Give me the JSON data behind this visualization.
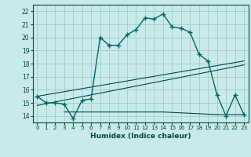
{
  "xlabel": "Humidex (Indice chaleur)",
  "bg_color": "#c8eaea",
  "grid_color": "#a8d0d0",
  "line_color": "#006868",
  "line2_color": "#004848",
  "xlim": [
    -0.5,
    23.5
  ],
  "ylim": [
    13.5,
    22.5
  ],
  "xticks": [
    0,
    1,
    2,
    3,
    4,
    5,
    6,
    7,
    8,
    9,
    10,
    11,
    12,
    13,
    14,
    15,
    16,
    17,
    18,
    19,
    20,
    21,
    22,
    23
  ],
  "yticks": [
    14,
    15,
    16,
    17,
    18,
    19,
    20,
    21,
    22
  ],
  "main_x": [
    0,
    1,
    2,
    3,
    4,
    5,
    6,
    7,
    8,
    9,
    10,
    11,
    12,
    13,
    14,
    15,
    16,
    17,
    18,
    19,
    20,
    21,
    22,
    23
  ],
  "main_y": [
    15.5,
    15.0,
    15.0,
    14.9,
    13.8,
    15.2,
    15.3,
    20.0,
    19.4,
    19.4,
    20.2,
    20.6,
    21.5,
    21.4,
    21.8,
    20.8,
    20.7,
    20.4,
    18.7,
    18.2,
    15.6,
    14.0,
    15.6,
    14.1
  ],
  "trend1_x": [
    0,
    23
  ],
  "trend1_y": [
    15.5,
    18.2
  ],
  "trend2_x": [
    0,
    23
  ],
  "trend2_y": [
    14.8,
    17.9
  ],
  "flat_x": [
    3,
    9,
    14,
    20,
    23
  ],
  "flat_y": [
    14.3,
    14.3,
    14.3,
    14.1,
    14.1
  ]
}
